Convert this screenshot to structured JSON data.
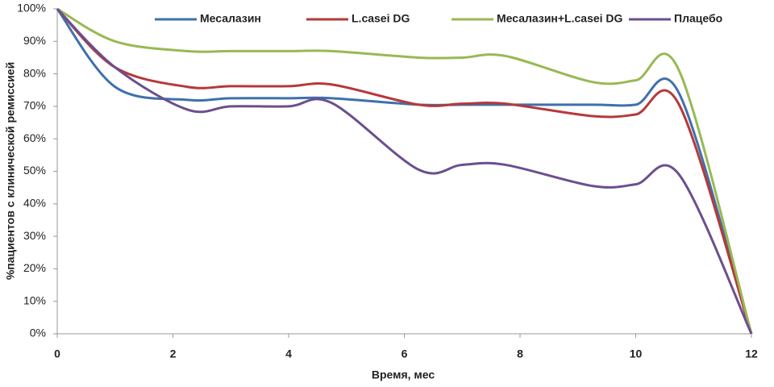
{
  "chart_data": {
    "type": "line",
    "x_label": "Время, мес",
    "y_label": "%пациентов с клинической ремиссией",
    "x": [
      0,
      1,
      2.25,
      3,
      4,
      4.75,
      6.25,
      7,
      7.75,
      9.25,
      10,
      10.75,
      12
    ],
    "series": [
      {
        "name": "Месалазин",
        "color": "#3f70ad",
        "values": [
          100,
          76,
          72,
          72.5,
          72.5,
          72.5,
          70.5,
          70.5,
          70.5,
          70.5,
          70.5,
          74,
          0
        ]
      },
      {
        "name": "L.casei DG",
        "color": "#b5393a",
        "values": [
          100,
          82,
          76,
          76.2,
          76.2,
          76.7,
          70.5,
          70.8,
          70.8,
          67,
          67.5,
          70.5,
          0
        ]
      },
      {
        "name": "Месалазин+L.casei  DG",
        "color": "#98b954",
        "values": [
          100,
          90,
          87,
          87,
          87,
          87,
          85,
          85,
          85.5,
          77.5,
          78,
          81,
          0
        ]
      },
      {
        "name": "Плацебо",
        "color": "#6b4f8e",
        "values": [
          100,
          82,
          69,
          70,
          70,
          71,
          50.5,
          52,
          52,
          45.5,
          46,
          49,
          0
        ]
      }
    ],
    "xlim": [
      0,
      12
    ],
    "xticks": [
      0,
      2,
      4,
      6,
      8,
      10,
      12
    ],
    "ylim": [
      0,
      100
    ],
    "yticks": [
      {
        "value": 0,
        "label": "0%"
      },
      {
        "value": 10,
        "label": "10%"
      },
      {
        "value": 20,
        "label": "20%"
      },
      {
        "value": 30,
        "label": "30%"
      },
      {
        "value": 40,
        "label": "40%"
      },
      {
        "value": 50,
        "label": "50%"
      },
      {
        "value": 60,
        "label": "60%"
      },
      {
        "value": 70,
        "label": "70%"
      },
      {
        "value": 80,
        "label": "80%"
      },
      {
        "value": 90,
        "label": "90%"
      },
      {
        "value": 100,
        "label": "100%"
      }
    ],
    "grid": false,
    "legend": "top"
  }
}
